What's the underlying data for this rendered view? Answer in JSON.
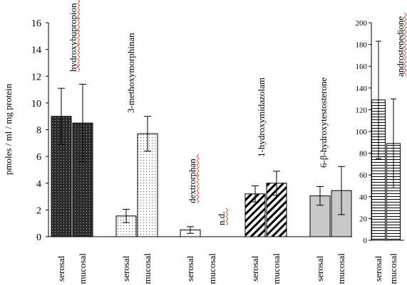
{
  "chart_data": [
    {
      "type": "bar",
      "ylabel": "pmoles / ml / mg protein",
      "ylim": [
        0,
        16
      ],
      "yticks": [
        "0",
        "2",
        "4",
        "6",
        "8",
        "10",
        "12",
        "14",
        "16"
      ],
      "categories": [
        "serosal",
        "mucosal",
        "serosal",
        "mucosal",
        "serosal",
        "mucosal",
        "serosal",
        "mucosal",
        "serosal",
        "mucosal"
      ],
      "groups": [
        {
          "label": "hydroxybupropion",
          "pattern": "dark-dots",
          "values": [
            9.0,
            8.5
          ],
          "errors": [
            2.1,
            2.9
          ],
          "note": ""
        },
        {
          "label": "3-methoxymorphinan",
          "pattern": "light-dots",
          "values": [
            1.55,
            7.7
          ],
          "errors": [
            0.5,
            1.3
          ],
          "note": ""
        },
        {
          "label": "dextrorphan",
          "pattern": "white",
          "values": [
            0.5,
            null
          ],
          "errors": [
            0.25,
            null
          ],
          "note": "n.d."
        },
        {
          "label": "1-hydroxymidazolam",
          "pattern": "diagonal",
          "values": [
            3.2,
            4.0
          ],
          "errors": [
            0.6,
            0.9
          ],
          "note": ""
        },
        {
          "label": "6-β-hydroxytestosterone",
          "pattern": "gray",
          "values": [
            3.05,
            3.45
          ],
          "errors": [
            0.7,
            1.8
          ],
          "note": ""
        }
      ]
    },
    {
      "type": "bar",
      "ylim": [
        0,
        200
      ],
      "yticks": [
        "0",
        "20",
        "40",
        "60",
        "80",
        "100",
        "120",
        "140",
        "160",
        "180",
        "200"
      ],
      "categories": [
        "serosal",
        "mucosal"
      ],
      "groups": [
        {
          "label": "androstenedione",
          "pattern": "horizontal",
          "values": [
            129,
            89
          ],
          "errors": [
            54,
            41
          ],
          "note": ""
        }
      ]
    }
  ]
}
